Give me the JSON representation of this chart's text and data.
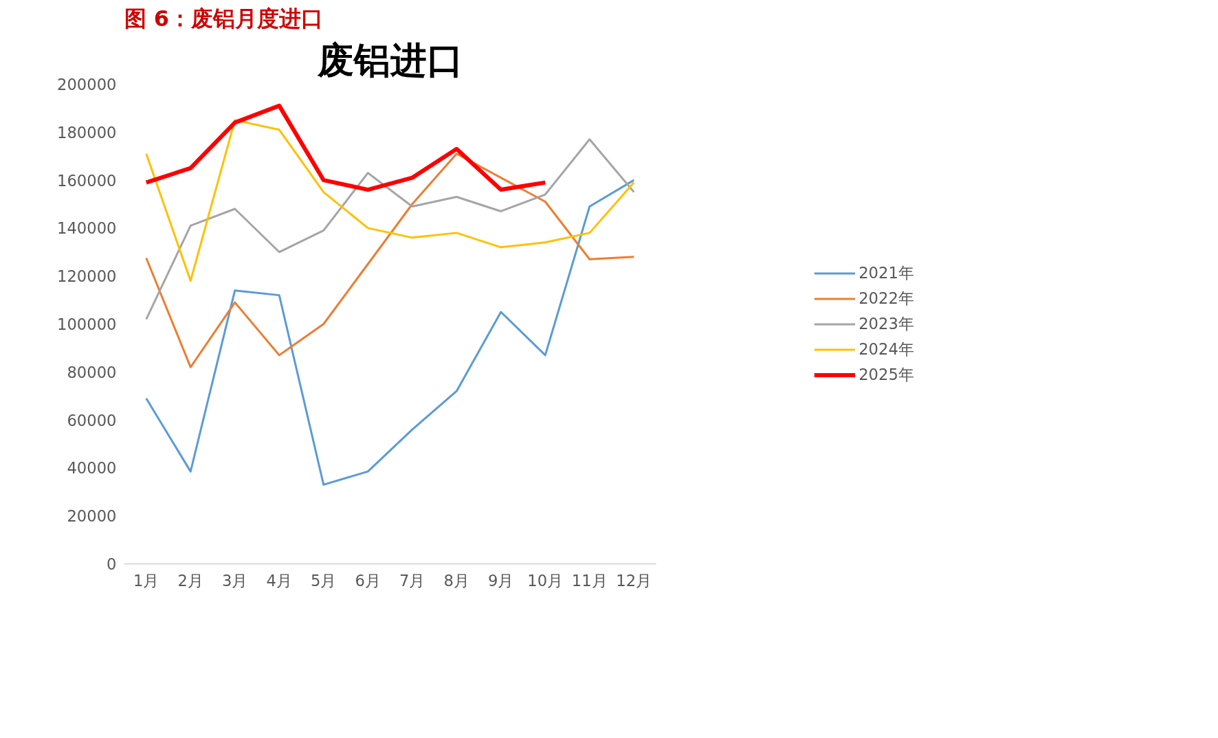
{
  "chart_data": {
    "type": "line",
    "title": "图 6：废铝月度进口",
    "subtitle": "废铝进口",
    "categories": [
      "1月",
      "2月",
      "3月",
      "4月",
      "5月",
      "6月",
      "7月",
      "8月",
      "9月",
      "10月",
      "11月",
      "12月"
    ],
    "series": [
      {
        "name": "2021年",
        "color": "#5b9bd5",
        "values": [
          69000,
          38500,
          114000,
          112000,
          33000,
          38500,
          56000,
          72000,
          105000,
          87000,
          149000,
          160000
        ]
      },
      {
        "name": "2022年",
        "color": "#ed7d31",
        "values": [
          127500,
          82000,
          109000,
          87000,
          100000,
          125000,
          150000,
          171000,
          161000,
          151000,
          127000,
          128000
        ]
      },
      {
        "name": "2023年",
        "color": "#a5a5a5",
        "values": [
          102000,
          141000,
          148000,
          130000,
          139000,
          163000,
          149000,
          153000,
          147000,
          154000,
          177000,
          155000
        ]
      },
      {
        "name": "2024年",
        "color": "#ffc000",
        "values": [
          171000,
          118000,
          185000,
          181000,
          155000,
          140000,
          136000,
          138000,
          132000,
          134000,
          138000,
          159000
        ]
      },
      {
        "name": "2025年",
        "color": "#ff0000",
        "values": [
          159000,
          165000,
          184000,
          191000,
          160000,
          156000,
          161000,
          173000,
          156000,
          159000,
          null,
          null
        ]
      }
    ],
    "ylim": [
      0,
      200000
    ],
    "yticks": [
      0,
      20000,
      40000,
      60000,
      80000,
      100000,
      120000,
      140000,
      160000,
      180000,
      200000
    ],
    "grid": false,
    "legend": "right",
    "marker": "none",
    "line_style": "solid"
  }
}
